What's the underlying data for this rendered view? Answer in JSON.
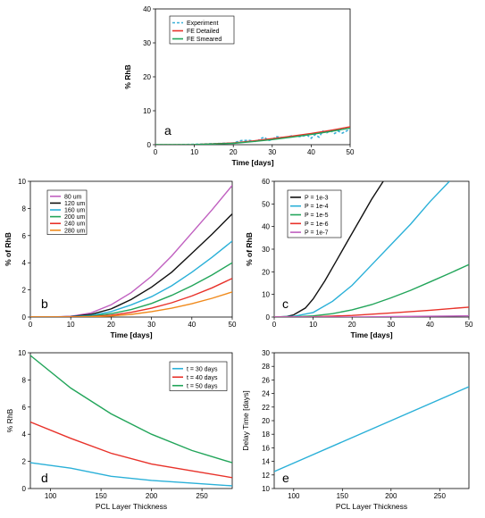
{
  "chart_data": [
    {
      "id": "a",
      "type": "line",
      "panel_letter": "a",
      "xlabel": "Time [days]",
      "ylabel": "% RhB",
      "xlim": [
        0,
        50
      ],
      "ylim": [
        0,
        40
      ],
      "xticks": [
        0,
        10,
        20,
        30,
        40,
        50
      ],
      "yticks": [
        0,
        10,
        20,
        30,
        40
      ],
      "legend_position": "top-left",
      "series": [
        {
          "name": "Experiment",
          "color": "#3ab0d8",
          "dash": true,
          "x": [
            0,
            5,
            10,
            15,
            20,
            22,
            24,
            26,
            27,
            28,
            29,
            30,
            31,
            33,
            35,
            37,
            39,
            40,
            41,
            42,
            43,
            44,
            45,
            46,
            47,
            48,
            49,
            50
          ],
          "y": [
            0,
            0,
            0.1,
            0.3,
            0.5,
            1.2,
            1.3,
            0.9,
            1.8,
            2.2,
            1.2,
            1.5,
            2.4,
            2.0,
            2.6,
            2.4,
            2.8,
            1.9,
            3.0,
            2.2,
            4.0,
            3.5,
            4.2,
            3.3,
            4.0,
            3.4,
            4.0,
            4.6
          ]
        },
        {
          "name": "FE Detailed",
          "color": "#e8322a",
          "dash": false,
          "x": [
            0,
            10,
            20,
            25,
            30,
            35,
            40,
            45,
            50
          ],
          "y": [
            0,
            0.05,
            0.5,
            1.1,
            1.8,
            2.5,
            3.3,
            4.2,
            5.3
          ]
        },
        {
          "name": "FE Smeared",
          "color": "#22a55a",
          "dash": false,
          "x": [
            0,
            10,
            20,
            25,
            30,
            35,
            40,
            45,
            50
          ],
          "y": [
            0,
            0.05,
            0.4,
            0.9,
            1.5,
            2.2,
            3.0,
            3.9,
            4.9
          ]
        }
      ]
    },
    {
      "id": "b",
      "type": "line",
      "panel_letter": "b",
      "xlabel": "Time [days]",
      "ylabel": "% of RhB",
      "xlim": [
        0,
        50
      ],
      "ylim": [
        0,
        10
      ],
      "xticks": [
        0,
        10,
        20,
        30,
        40,
        50
      ],
      "yticks": [
        0,
        2,
        4,
        6,
        8,
        10
      ],
      "legend_position": "top-left",
      "series": [
        {
          "name": "80 um",
          "color": "#c060c0",
          "x": [
            0,
            5,
            10,
            15,
            20,
            25,
            30,
            35,
            40,
            45,
            50
          ],
          "y": [
            0,
            0,
            0.05,
            0.3,
            0.9,
            1.8,
            3.0,
            4.5,
            6.2,
            7.9,
            9.7
          ]
        },
        {
          "name": "120 um",
          "color": "#111111",
          "x": [
            0,
            5,
            10,
            15,
            20,
            25,
            30,
            35,
            40,
            45,
            50
          ],
          "y": [
            0,
            0,
            0.03,
            0.2,
            0.6,
            1.3,
            2.2,
            3.3,
            4.7,
            6.1,
            7.6
          ]
        },
        {
          "name": "160 um",
          "color": "#2ab0d8",
          "x": [
            0,
            5,
            10,
            15,
            20,
            25,
            30,
            35,
            40,
            45,
            50
          ],
          "y": [
            0,
            0,
            0.02,
            0.12,
            0.4,
            0.9,
            1.5,
            2.3,
            3.3,
            4.4,
            5.6
          ]
        },
        {
          "name": "200 um",
          "color": "#22a55a",
          "x": [
            0,
            5,
            10,
            15,
            20,
            25,
            30,
            35,
            40,
            45,
            50
          ],
          "y": [
            0,
            0,
            0.01,
            0.08,
            0.25,
            0.55,
            1.0,
            1.6,
            2.3,
            3.1,
            4.0
          ]
        },
        {
          "name": "240 um",
          "color": "#e8322a",
          "x": [
            0,
            5,
            10,
            15,
            20,
            25,
            30,
            35,
            40,
            45,
            50
          ],
          "y": [
            0,
            0,
            0.01,
            0.04,
            0.14,
            0.35,
            0.65,
            1.05,
            1.55,
            2.15,
            2.85
          ]
        },
        {
          "name": "280 um",
          "color": "#f08a1c",
          "x": [
            0,
            5,
            10,
            15,
            20,
            25,
            30,
            35,
            40,
            45,
            50
          ],
          "y": [
            0,
            0,
            0,
            0.02,
            0.08,
            0.2,
            0.4,
            0.65,
            0.98,
            1.38,
            1.85
          ]
        }
      ]
    },
    {
      "id": "c",
      "type": "line",
      "panel_letter": "c",
      "xlabel": "Time [days]",
      "ylabel": "% of RhB",
      "xlim": [
        0,
        50
      ],
      "ylim": [
        0,
        60
      ],
      "xticks": [
        0,
        10,
        20,
        30,
        40,
        50
      ],
      "yticks": [
        0,
        10,
        20,
        30,
        40,
        50,
        60
      ],
      "legend_position": "top-left",
      "series": [
        {
          "name": "P = 1e-3",
          "color": "#111111",
          "x": [
            0,
            3,
            5,
            8,
            10,
            13,
            16,
            19,
            22,
            25,
            28
          ],
          "y": [
            0,
            0.2,
            1,
            4,
            8,
            16,
            25,
            34,
            43,
            52,
            60
          ]
        },
        {
          "name": "P = 1e-4",
          "color": "#2ab0d8",
          "x": [
            0,
            5,
            10,
            15,
            20,
            25,
            30,
            35,
            40,
            45
          ],
          "y": [
            0,
            0.3,
            2,
            7,
            14,
            23,
            32,
            41,
            51,
            60
          ]
        },
        {
          "name": "P = 1e-5",
          "color": "#22a55a",
          "x": [
            0,
            5,
            10,
            15,
            20,
            25,
            30,
            35,
            40,
            45,
            50
          ],
          "y": [
            0,
            0.1,
            0.5,
            1.5,
            3.2,
            5.5,
            8.5,
            11.8,
            15.5,
            19.3,
            23.2
          ]
        },
        {
          "name": "P = 1e-6",
          "color": "#e8322a",
          "x": [
            0,
            10,
            20,
            30,
            40,
            50
          ],
          "y": [
            0,
            0.1,
            0.7,
            1.8,
            3.0,
            4.4
          ]
        },
        {
          "name": "P = 1e-7",
          "color": "#c060c0",
          "x": [
            0,
            10,
            20,
            30,
            40,
            50
          ],
          "y": [
            0,
            0,
            0.05,
            0.2,
            0.35,
            0.55
          ]
        }
      ]
    },
    {
      "id": "d",
      "type": "line",
      "panel_letter": "d",
      "xlabel": "PCL Layer Thickness",
      "ylabel": "% RhB",
      "xlim": [
        80,
        280
      ],
      "ylim": [
        0,
        10
      ],
      "xticks": [
        100,
        150,
        200,
        250
      ],
      "yticks": [
        0,
        2,
        4,
        6,
        8,
        10
      ],
      "legend_position": "top-right",
      "series": [
        {
          "name": "t = 30 days",
          "color": "#2ab0d8",
          "x": [
            80,
            120,
            160,
            200,
            240,
            280
          ],
          "y": [
            1.9,
            1.5,
            0.9,
            0.6,
            0.4,
            0.2
          ]
        },
        {
          "name": "t = 40 days",
          "color": "#e8322a",
          "x": [
            80,
            120,
            160,
            200,
            240,
            280
          ],
          "y": [
            4.9,
            3.7,
            2.6,
            1.8,
            1.3,
            0.8
          ]
        },
        {
          "name": "t = 50 days",
          "color": "#22a55a",
          "x": [
            80,
            120,
            160,
            200,
            240,
            280
          ],
          "y": [
            9.8,
            7.4,
            5.5,
            4.0,
            2.8,
            1.9
          ]
        }
      ]
    },
    {
      "id": "e",
      "type": "line",
      "panel_letter": "e",
      "xlabel": "PCL Layer Thickness",
      "ylabel": "Delay Time [days]",
      "xlim": [
        80,
        280
      ],
      "ylim": [
        10,
        30
      ],
      "xticks": [
        100,
        150,
        200,
        250
      ],
      "yticks": [
        10,
        12,
        14,
        16,
        18,
        20,
        22,
        24,
        26,
        28,
        30
      ],
      "series": [
        {
          "name": "",
          "color": "#2ab0d8",
          "x": [
            80,
            280
          ],
          "y": [
            12.5,
            25
          ]
        }
      ]
    }
  ]
}
